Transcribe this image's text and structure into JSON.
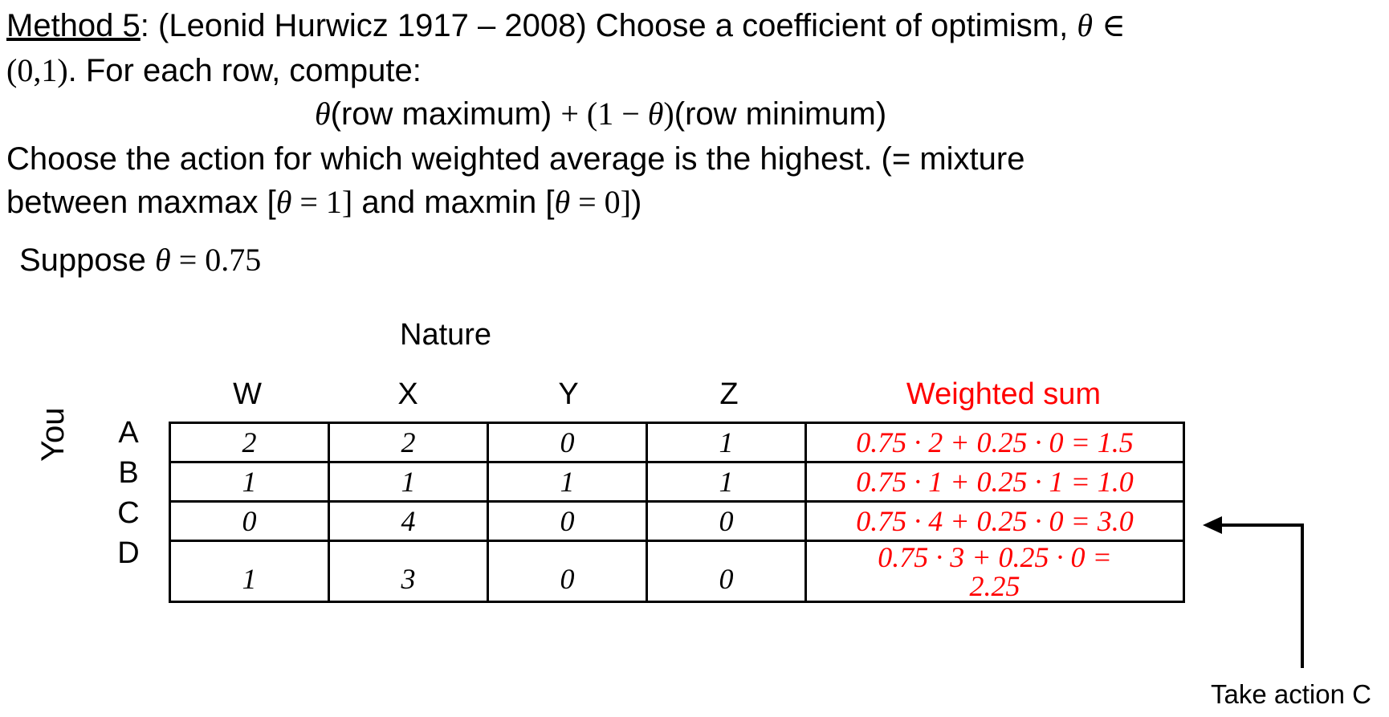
{
  "text": {
    "method_label": "Method 5",
    "line1_rest": ": (Leonid Hurwicz 1917 – 2008) Choose a coefficient of optimism, ",
    "theta": "θ",
    "in_symbol": "∈",
    "interval": "(0,1)",
    "line2_rest": ". For each row, compute:",
    "formula_theta1": "θ",
    "formula_part1": "(row maximum) ",
    "formula_plus": "+ (1 − ",
    "formula_theta2": "θ",
    "formula_close": ")",
    "formula_part2": "(row minimum)",
    "line4": "Choose the action for which weighted average is the highest. (= mixture",
    "line5_a": "between maxmax [",
    "line5_b": " = 1]",
    "line5_c": " and maxmin [",
    "line5_d": " = 0]",
    "line5_e": ")",
    "suppose": "Suppose ",
    "suppose_val": " = 0.75"
  },
  "table": {
    "nature_label": "Nature",
    "player_label": "You",
    "columns": [
      "W",
      "X",
      "Y",
      "Z"
    ],
    "weighted_header": "Weighted sum",
    "rows": [
      {
        "label": "A",
        "values": [
          "2",
          "2",
          "0",
          "1"
        ],
        "calc": "0.75 · 2 + 0.25 · 0 = 1.5"
      },
      {
        "label": "B",
        "values": [
          "1",
          "1",
          "1",
          "1"
        ],
        "calc": "0.75 · 1 + 0.25 · 1 = 1.0"
      },
      {
        "label": "C",
        "values": [
          "0",
          "4",
          "0",
          "0"
        ],
        "calc": "0.75 · 4 + 0.25 · 0 = 3.0"
      },
      {
        "label": "D",
        "values": [
          "1",
          "3",
          "0",
          "0"
        ],
        "calc_line1": "0.75 · 3 + 0.25 · 0 =",
        "calc_line2": "2.25"
      }
    ]
  },
  "annotation": {
    "text": "Take action C"
  },
  "colors": {
    "highlight": "#ff0000",
    "text": "#000000"
  }
}
